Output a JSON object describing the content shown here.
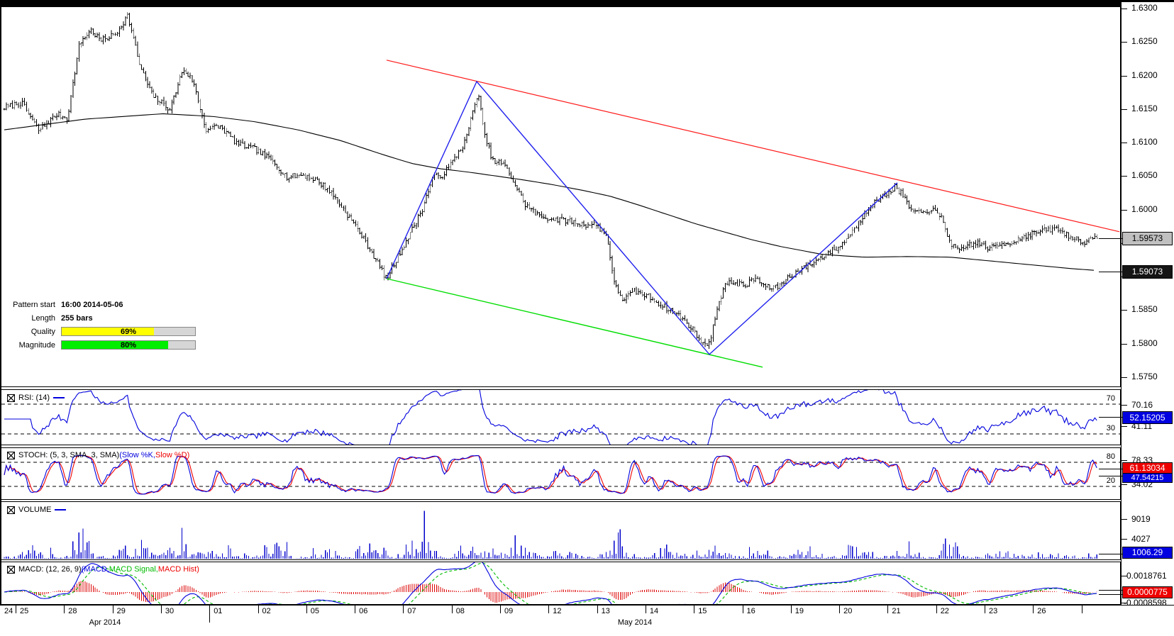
{
  "colors": {
    "blue": "#0000dd",
    "red": "#ee0000",
    "green": "#00bb00",
    "red_trendline": "#ff1a1a",
    "green_trendline": "#00dd00",
    "blue_pattern": "#2222ee",
    "volume_bar": "#0000cc",
    "hist_red": "#dd0000",
    "gray_box_bg": "#c0c0c0",
    "dark_box_bg": "#151515",
    "box_blue_bg": "#0000e0",
    "box_red_bg": "#ee0000",
    "quality_fill": "#ffff00",
    "magnitude_fill": "#00ee00"
  },
  "pattern_info": {
    "rows": [
      {
        "label": "Pattern start",
        "value": "16:00 2014-05-06"
      },
      {
        "label": "Length",
        "value": "255 bars"
      }
    ],
    "quality": {
      "label": "Quality",
      "text": "69%",
      "percent": 69
    },
    "magnitude": {
      "label": "Magnitude",
      "text": "80%",
      "percent": 80
    }
  },
  "price_axis": {
    "ticks": [
      "1.6300",
      "1.6250",
      "1.6200",
      "1.6150",
      "1.6100",
      "1.6050",
      "1.6000",
      "1.5950",
      "1.5900",
      "1.5850",
      "1.5800",
      "1.5750"
    ],
    "last_price_box": "1.59573",
    "ma_value_box": "1.59073"
  },
  "panels": {
    "rsi": {
      "title": "RSI: (14)",
      "level_high": "70",
      "level_low": "30",
      "axis_high": "70.16",
      "axis_low": "41.11",
      "value_box": "52.15205"
    },
    "stoch": {
      "title": "STOCH: (5, 3, SMA, 3, SMA) ",
      "k_part": "(Slow %K, ",
      "d_part": "Slow %D)",
      "level_high": "80",
      "level_low": "20",
      "axis_high": "78.33",
      "axis_low": "34.02",
      "d_value_box": "61.13034",
      "k_value_box": "47.54215"
    },
    "volume": {
      "title": "VOLUME",
      "axis_high": "9019",
      "axis_low": "4027",
      "value_box": "1006.29"
    },
    "macd": {
      "title": "MACD: (12, 26, 9) ",
      "macd_part": "(MACD, ",
      "signal_part": "MACD Signal, ",
      "hist_part": "MACD Hist)",
      "axis_high": "0.0018761",
      "axis_low": "-0.0008598",
      "value_box": "0.0000775"
    }
  },
  "x_axis": {
    "dates": [
      "24",
      "25",
      "28",
      "29",
      "30",
      "01",
      "02",
      "05",
      "06",
      "07",
      "08",
      "09",
      "12",
      "13",
      "14",
      "15",
      "16",
      "19",
      "20",
      "21",
      "22",
      "23",
      "26"
    ],
    "months": [
      "Apr 2014",
      "May 2014"
    ]
  },
  "chart_data": [
    {
      "id": "price",
      "type": "ohlc-bar",
      "instrument_scale": "GBP/USD-style 4-decimal price axis",
      "ylim": [
        1.574,
        1.631
      ],
      "yticks": [
        1.63,
        1.625,
        1.62,
        1.615,
        1.61,
        1.605,
        1.6,
        1.595,
        1.59,
        1.585,
        1.58,
        1.575
      ],
      "last_price": 1.59573,
      "ma_last_value": 1.59073,
      "close_anchors": [
        [
          6,
          1.6152
        ],
        [
          30,
          1.616
        ],
        [
          55,
          1.6118
        ],
        [
          80,
          1.6142
        ],
        [
          95,
          1.6136
        ],
        [
          112,
          1.6248
        ],
        [
          128,
          1.6268
        ],
        [
          142,
          1.6252
        ],
        [
          163,
          1.6262
        ],
        [
          180,
          1.629
        ],
        [
          198,
          1.6212
        ],
        [
          215,
          1.617
        ],
        [
          240,
          1.615
        ],
        [
          258,
          1.621
        ],
        [
          272,
          1.6192
        ],
        [
          290,
          1.612
        ],
        [
          310,
          1.6124
        ],
        [
          335,
          1.6098
        ],
        [
          360,
          1.609
        ],
        [
          385,
          1.6072
        ],
        [
          405,
          1.6048
        ],
        [
          425,
          1.6052
        ],
        [
          445,
          1.6045
        ],
        [
          465,
          1.6028
        ],
        [
          485,
          1.6
        ],
        [
          505,
          1.597
        ],
        [
          525,
          1.5935
        ],
        [
          545,
          1.5896
        ],
        [
          560,
          1.5928
        ],
        [
          580,
          1.5968
        ],
        [
          595,
          1.6
        ],
        [
          610,
          1.6048
        ],
        [
          625,
          1.6052
        ],
        [
          640,
          1.6075
        ],
        [
          655,
          1.61
        ],
        [
          668,
          1.615
        ],
        [
          674,
          1.6178
        ],
        [
          682,
          1.6115
        ],
        [
          695,
          1.6072
        ],
        [
          710,
          1.6068
        ],
        [
          725,
          1.604
        ],
        [
          740,
          1.6008
        ],
        [
          760,
          1.599
        ],
        [
          780,
          1.5986
        ],
        [
          800,
          1.5984
        ],
        [
          820,
          1.5978
        ],
        [
          840,
          1.5978
        ],
        [
          856,
          1.596
        ],
        [
          866,
          1.5888
        ],
        [
          878,
          1.5866
        ],
        [
          895,
          1.5878
        ],
        [
          915,
          1.587
        ],
        [
          935,
          1.5856
        ],
        [
          955,
          1.5844
        ],
        [
          975,
          1.5824
        ],
        [
          993,
          1.5796
        ],
        [
          1002,
          1.5808
        ],
        [
          1012,
          1.5858
        ],
        [
          1022,
          1.5888
        ],
        [
          1035,
          1.5892
        ],
        [
          1050,
          1.5886
        ],
        [
          1065,
          1.5898
        ],
        [
          1080,
          1.5884
        ],
        [
          1095,
          1.5884
        ],
        [
          1110,
          1.5898
        ],
        [
          1125,
          1.5908
        ],
        [
          1145,
          1.592
        ],
        [
          1165,
          1.5934
        ],
        [
          1185,
          1.5946
        ],
        [
          1205,
          1.5972
        ],
        [
          1225,
          1.6004
        ],
        [
          1245,
          1.602
        ],
        [
          1262,
          1.6034
        ],
        [
          1272,
          1.6022
        ],
        [
          1285,
          1.5998
        ],
        [
          1300,
          1.5994
        ],
        [
          1312,
          1.6002
        ],
        [
          1328,
          1.5986
        ],
        [
          1340,
          1.595
        ],
        [
          1352,
          1.5936
        ],
        [
          1365,
          1.5948
        ],
        [
          1380,
          1.595
        ],
        [
          1395,
          1.5942
        ],
        [
          1410,
          1.5948
        ],
        [
          1428,
          1.5952
        ],
        [
          1448,
          1.5962
        ],
        [
          1468,
          1.5968
        ],
        [
          1490,
          1.5972
        ],
        [
          1510,
          1.5958
        ],
        [
          1530,
          1.5952
        ],
        [
          1546,
          1.59573
        ]
      ],
      "ma_anchors": [
        [
          6,
          1.6119
        ],
        [
          120,
          1.6135
        ],
        [
          230,
          1.6143
        ],
        [
          300,
          1.6139
        ],
        [
          360,
          1.6131
        ],
        [
          420,
          1.6119
        ],
        [
          480,
          1.6103
        ],
        [
          540,
          1.6082
        ],
        [
          580,
          1.6069
        ],
        [
          620,
          1.6061
        ],
        [
          660,
          1.6056
        ],
        [
          700,
          1.605
        ],
        [
          740,
          1.6044
        ],
        [
          780,
          1.6037
        ],
        [
          820,
          1.6029
        ],
        [
          860,
          1.602
        ],
        [
          900,
          1.6007
        ],
        [
          940,
          1.5993
        ],
        [
          980,
          1.5979
        ],
        [
          1020,
          1.5967
        ],
        [
          1060,
          1.5955
        ],
        [
          1100,
          1.5945
        ],
        [
          1160,
          1.5933
        ],
        [
          1220,
          1.5929
        ],
        [
          1280,
          1.593
        ],
        [
          1340,
          1.5929
        ],
        [
          1400,
          1.5923
        ],
        [
          1460,
          1.5917
        ],
        [
          1510,
          1.5912
        ],
        [
          1548,
          1.5909
        ]
      ],
      "overlays": {
        "red_trendline": [
          [
            545,
            1.6223
          ],
          [
            1578,
            1.5967
          ]
        ],
        "green_trendline": [
          [
            545,
            1.5897
          ],
          [
            1075,
            1.5765
          ]
        ],
        "blue_pattern": [
          [
            545,
            1.5897
          ],
          [
            672,
            1.6191
          ],
          [
            1000,
            1.5784
          ],
          [
            1265,
            1.604
          ]
        ]
      }
    },
    {
      "id": "rsi",
      "type": "line",
      "period": 14,
      "levels": [
        70,
        30
      ],
      "axis_values": [
        70.16,
        41.11
      ],
      "current": 52.15205
    },
    {
      "id": "stoch",
      "type": "line",
      "params": [
        5,
        3,
        3
      ],
      "levels": [
        80,
        20
      ],
      "axis_values": [
        78.33,
        34.02
      ],
      "current_d": 61.13034,
      "current_k": 47.54215
    },
    {
      "id": "volume",
      "type": "bar",
      "axis_values": [
        9019,
        4027
      ],
      "current": 1006.29
    },
    {
      "id": "macd",
      "type": "line+hist",
      "params": [
        12,
        26,
        9
      ],
      "axis_values": [
        0.0018761,
        -0.0008598
      ],
      "current": 7.75e-05
    }
  ]
}
